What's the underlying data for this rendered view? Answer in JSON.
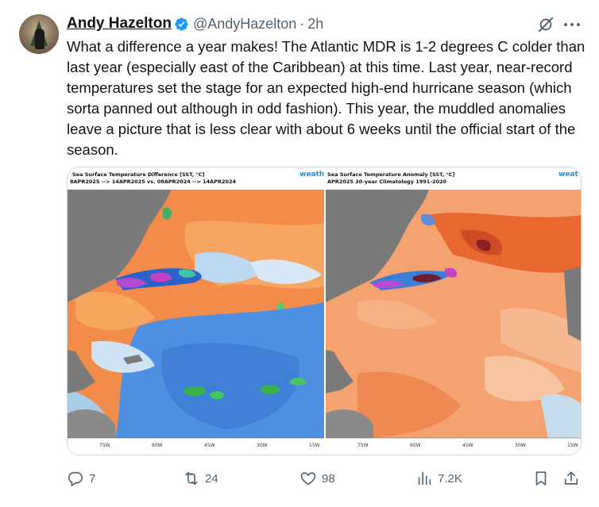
{
  "author": {
    "name": "Andy Hazelton",
    "handle": "@AndyHazelton",
    "separator": "·",
    "time": "2h"
  },
  "tweet": {
    "text": "What a difference a year makes! The Atlantic MDR is 1-2 degrees C colder than last year (especially east of the Caribbean) at this time. Last year, near-record temperatures set the stage for an expected high-end hurricane season (which sorta panned out although in odd fashion). This year, the muddled anomalies leave a picture that is less clear with about 6 weeks until the official start of the season."
  },
  "media": {
    "left": {
      "title": "Sea Surface Temperature Difference [SST, °C]",
      "subtitle": "8APR2025 --> 14APR2025 vs. 08APR2024 --> 14APR2024",
      "brand": "weath",
      "lon_labels": [
        "75W",
        "60W",
        "45W",
        "30W",
        "15W"
      ]
    },
    "right": {
      "title": "Sea Surface Temperature Anomaly [SST, °C]",
      "subtitle": "APR2025  30-year Climatology 1991-2020",
      "brand": "weat",
      "lon_labels": [
        "75W",
        "60W",
        "45W",
        "30W",
        "15W"
      ]
    }
  },
  "actions": {
    "replies": "7",
    "reposts": "24",
    "likes": "98",
    "views": "7.2K"
  },
  "icons": {
    "verified": "verified-badge-icon",
    "grok": "grok-icon",
    "more": "more-icon",
    "reply": "reply-icon",
    "repost": "repost-icon",
    "like": "heart-icon",
    "views": "views-icon",
    "bookmark": "bookmark-icon",
    "share": "share-icon"
  },
  "colors": {
    "verified": "#1d9bf0",
    "muted": "#536471",
    "text": "#0f1419"
  }
}
